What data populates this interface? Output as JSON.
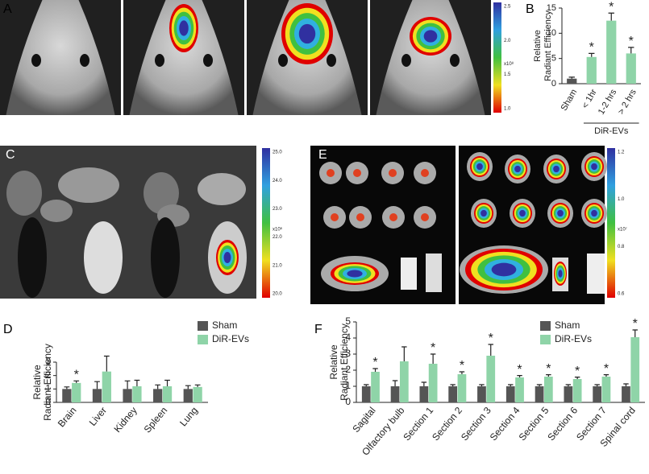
{
  "panel_labels": {
    "a": "A",
    "b": "B",
    "c": "C",
    "d": "D",
    "e": "E",
    "f": "F"
  },
  "colorbars": [
    {
      "ticks": [
        "2.5",
        "2.0",
        "1.5",
        "1.0"
      ],
      "unit": "x10⁸"
    },
    {
      "ticks": [
        "25.0",
        "24.0",
        "23.0",
        "22.0",
        "21.0",
        "20.0"
      ],
      "unit": "x10⁶"
    },
    {
      "ticks": [
        "1.2",
        "1.0",
        "0.8",
        "0.6"
      ],
      "unit": "x10⁷"
    }
  ],
  "chart_data": [
    {
      "type": "bar",
      "ylabel": [
        "Relative",
        "Radiant Efficiency"
      ],
      "categories": [
        "Sham",
        "< 1hr",
        "1-2 hrs",
        "> 2 hrs"
      ],
      "values": [
        1,
        5.3,
        12.5,
        6
      ],
      "errors": [
        0.3,
        0.7,
        1.5,
        1.2
      ],
      "colors": [
        "#555555",
        "#8fd4a8",
        "#8fd4a8",
        "#8fd4a8"
      ],
      "ylim": [
        0,
        15
      ],
      "yticks": [
        0,
        5,
        10,
        15
      ],
      "annotations": [
        {
          "index": 1,
          "text": "*"
        },
        {
          "index": 2,
          "text": "*"
        },
        {
          "index": 3,
          "text": "*"
        }
      ],
      "group_label": {
        "text": "DiR-EVs",
        "from": 1,
        "to": 3
      }
    },
    {
      "type": "bar",
      "ylabel": [
        "Relative",
        "Radiant Efficiency"
      ],
      "categories": [
        "Brain",
        "Liver",
        "Kidney",
        "Spleen",
        "Lung"
      ],
      "series": [
        {
          "name": "Sham",
          "color": "#555555",
          "values": [
            1,
            1,
            1,
            1,
            1
          ],
          "errors": [
            0.15,
            0.55,
            0.6,
            0.3,
            0.25
          ]
        },
        {
          "name": "DiR-EVs",
          "color": "#8fd4a8",
          "values": [
            1.45,
            2.3,
            1.2,
            1.2,
            1.15
          ],
          "errors": [
            0.15,
            1.15,
            0.45,
            0.45,
            0.15
          ]
        }
      ],
      "ylim": [
        0,
        3
      ],
      "yticks": [
        0,
        1,
        2,
        3
      ],
      "annotations": [
        {
          "index": 0,
          "text": "*"
        }
      ],
      "legend": "top-right"
    },
    {
      "type": "bar",
      "ylabel": [
        "Relative",
        "Radiant Efficiency"
      ],
      "categories": [
        "Sagital",
        "Olfactory bulb",
        "Section 1",
        "Section 2",
        "Section 3",
        "Section 4",
        "Section 5",
        "Section 6",
        "Section 7",
        "Spinal cord"
      ],
      "series": [
        {
          "name": "Sham",
          "color": "#555555",
          "values": [
            1,
            1,
            1,
            1,
            1,
            1,
            1,
            1,
            1,
            1
          ],
          "errors": [
            0.1,
            0.35,
            0.25,
            0.1,
            0.1,
            0.1,
            0.1,
            0.1,
            0.1,
            0.15
          ]
        },
        {
          "name": "DiR-EVs",
          "color": "#8fd4a8",
          "values": [
            1.9,
            2.55,
            2.4,
            1.75,
            2.9,
            1.55,
            1.6,
            1.45,
            1.6,
            4.05
          ],
          "errors": [
            0.2,
            0.9,
            0.6,
            0.15,
            0.7,
            0.12,
            0.12,
            0.12,
            0.12,
            0.45
          ]
        }
      ],
      "ylim": [
        0,
        5
      ],
      "yticks": [
        0,
        1,
        2,
        3,
        4,
        5
      ],
      "annotations": [
        {
          "index": 0,
          "text": "*"
        },
        {
          "index": 2,
          "text": "*"
        },
        {
          "index": 3,
          "text": "*"
        },
        {
          "index": 4,
          "text": "*"
        },
        {
          "index": 5,
          "text": "*"
        },
        {
          "index": 6,
          "text": "*"
        },
        {
          "index": 7,
          "text": "*"
        },
        {
          "index": 8,
          "text": "*"
        },
        {
          "index": 9,
          "text": "*"
        }
      ],
      "legend": "top-right"
    }
  ]
}
